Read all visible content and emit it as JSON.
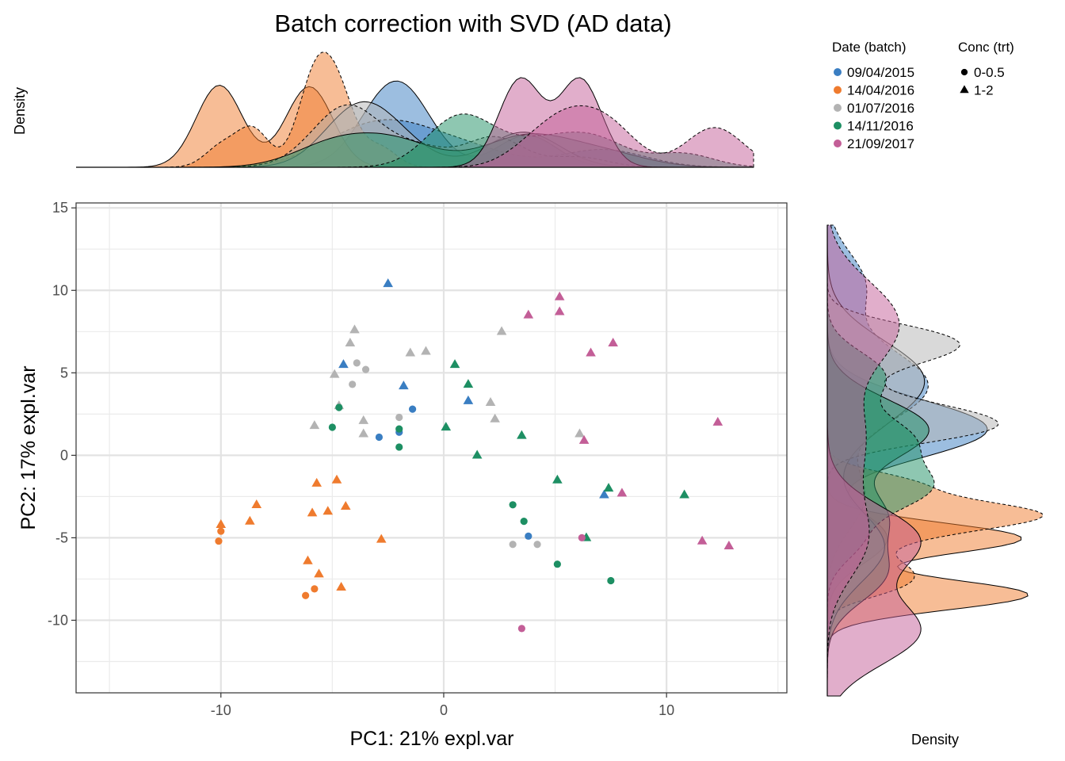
{
  "title": "Batch correction with SVD (AD data)",
  "colors": {
    "09/04/2015": "#3a7ec2",
    "14/04/2016": "#ef7b2e",
    "01/07/2016": "#b3b3b3",
    "14/11/2016": "#1d8f63",
    "21/09/2017": "#c35e97"
  },
  "legend": {
    "color_title": "Date (batch)",
    "shape_title": "Conc (trt)",
    "batches": [
      "09/04/2015",
      "14/04/2016",
      "01/07/2016",
      "14/11/2016",
      "21/09/2017"
    ],
    "shapes": [
      {
        "label": "0-0.5",
        "symbol": "circle"
      },
      {
        "label": "1-2",
        "symbol": "triangle"
      }
    ]
  },
  "top_density": {
    "ylabel": "Density"
  },
  "right_density": {
    "xlabel": "Density"
  },
  "chart_data": {
    "type": "scatter",
    "title": "Batch correction with SVD (AD data)",
    "xlabel": "PC1: 21% expl.var",
    "ylabel": "PC2: 17% expl.var",
    "xlim": [
      -16.5,
      15.4
    ],
    "ylim": [
      -14.4,
      15.3
    ],
    "xticks": [
      -10,
      0,
      10
    ],
    "yticks": [
      -10,
      -5,
      0,
      5,
      10,
      15
    ],
    "xtick_labels": [
      "-10",
      "0",
      "10"
    ],
    "ytick_labels": [
      "-10",
      "-5",
      "0",
      "5",
      "10",
      "15"
    ],
    "grid": true,
    "legend_position": "top-right",
    "series": [
      {
        "name": "09/04/2015",
        "points": [
          {
            "x": -2.5,
            "y": 10.4,
            "shape": "triangle"
          },
          {
            "x": -4.5,
            "y": 5.5,
            "shape": "triangle"
          },
          {
            "x": -1.8,
            "y": 4.2,
            "shape": "triangle"
          },
          {
            "x": 1.1,
            "y": 3.3,
            "shape": "triangle"
          },
          {
            "x": -1.4,
            "y": 2.8,
            "shape": "circle"
          },
          {
            "x": -2.0,
            "y": 1.4,
            "shape": "circle"
          },
          {
            "x": -2.9,
            "y": 1.1,
            "shape": "circle"
          },
          {
            "x": 3.8,
            "y": -4.9,
            "shape": "circle"
          },
          {
            "x": 7.2,
            "y": -2.4,
            "shape": "triangle"
          }
        ]
      },
      {
        "name": "14/04/2016",
        "points": [
          {
            "x": -10.0,
            "y": -4.2,
            "shape": "triangle"
          },
          {
            "x": -10.0,
            "y": -4.6,
            "shape": "circle"
          },
          {
            "x": -10.1,
            "y": -5.2,
            "shape": "circle"
          },
          {
            "x": -8.7,
            "y": -4.0,
            "shape": "triangle"
          },
          {
            "x": -8.4,
            "y": -3.0,
            "shape": "triangle"
          },
          {
            "x": -5.7,
            "y": -1.7,
            "shape": "triangle"
          },
          {
            "x": -4.8,
            "y": -1.5,
            "shape": "triangle"
          },
          {
            "x": -4.4,
            "y": -3.1,
            "shape": "triangle"
          },
          {
            "x": -5.2,
            "y": -3.4,
            "shape": "triangle"
          },
          {
            "x": -5.9,
            "y": -3.5,
            "shape": "triangle"
          },
          {
            "x": -2.8,
            "y": -5.1,
            "shape": "triangle"
          },
          {
            "x": -6.1,
            "y": -6.4,
            "shape": "triangle"
          },
          {
            "x": -5.6,
            "y": -7.2,
            "shape": "triangle"
          },
          {
            "x": -4.6,
            "y": -8.0,
            "shape": "triangle"
          },
          {
            "x": -5.8,
            "y": -8.1,
            "shape": "circle"
          },
          {
            "x": -6.2,
            "y": -8.5,
            "shape": "circle"
          }
        ]
      },
      {
        "name": "01/07/2016",
        "points": [
          {
            "x": -4.0,
            "y": 7.6,
            "shape": "triangle"
          },
          {
            "x": -4.2,
            "y": 6.8,
            "shape": "triangle"
          },
          {
            "x": -3.9,
            "y": 5.6,
            "shape": "circle"
          },
          {
            "x": -3.5,
            "y": 5.2,
            "shape": "circle"
          },
          {
            "x": -4.9,
            "y": 4.9,
            "shape": "triangle"
          },
          {
            "x": -4.1,
            "y": 4.3,
            "shape": "circle"
          },
          {
            "x": -4.7,
            "y": 3.0,
            "shape": "triangle"
          },
          {
            "x": -3.6,
            "y": 2.1,
            "shape": "triangle"
          },
          {
            "x": -5.8,
            "y": 1.8,
            "shape": "triangle"
          },
          {
            "x": -3.6,
            "y": 1.3,
            "shape": "triangle"
          },
          {
            "x": -2.0,
            "y": 2.3,
            "shape": "circle"
          },
          {
            "x": -1.5,
            "y": 6.2,
            "shape": "triangle"
          },
          {
            "x": -0.8,
            "y": 6.3,
            "shape": "triangle"
          },
          {
            "x": 2.6,
            "y": 7.5,
            "shape": "triangle"
          },
          {
            "x": 2.1,
            "y": 3.2,
            "shape": "triangle"
          },
          {
            "x": 2.3,
            "y": 2.2,
            "shape": "triangle"
          },
          {
            "x": 6.1,
            "y": 1.3,
            "shape": "triangle"
          },
          {
            "x": 3.1,
            "y": -5.4,
            "shape": "circle"
          },
          {
            "x": 4.2,
            "y": -5.4,
            "shape": "circle"
          }
        ]
      },
      {
        "name": "14/11/2016",
        "points": [
          {
            "x": 0.5,
            "y": 5.5,
            "shape": "triangle"
          },
          {
            "x": 1.1,
            "y": 4.3,
            "shape": "triangle"
          },
          {
            "x": -4.7,
            "y": 2.9,
            "shape": "circle"
          },
          {
            "x": -5.0,
            "y": 1.7,
            "shape": "circle"
          },
          {
            "x": -2.0,
            "y": 1.6,
            "shape": "circle"
          },
          {
            "x": -2.0,
            "y": 0.5,
            "shape": "circle"
          },
          {
            "x": 0.1,
            "y": 1.7,
            "shape": "triangle"
          },
          {
            "x": 3.5,
            "y": 1.2,
            "shape": "triangle"
          },
          {
            "x": 1.5,
            "y": 0.0,
            "shape": "triangle"
          },
          {
            "x": 5.1,
            "y": -1.5,
            "shape": "triangle"
          },
          {
            "x": 7.4,
            "y": -2.0,
            "shape": "triangle"
          },
          {
            "x": 10.8,
            "y": -2.4,
            "shape": "triangle"
          },
          {
            "x": 3.1,
            "y": -3.0,
            "shape": "circle"
          },
          {
            "x": 3.6,
            "y": -4.0,
            "shape": "circle"
          },
          {
            "x": 6.4,
            "y": -5.0,
            "shape": "triangle"
          },
          {
            "x": 5.1,
            "y": -6.6,
            "shape": "circle"
          },
          {
            "x": 7.5,
            "y": -7.6,
            "shape": "circle"
          }
        ]
      },
      {
        "name": "21/09/2017",
        "points": [
          {
            "x": 5.2,
            "y": 9.6,
            "shape": "triangle"
          },
          {
            "x": 3.8,
            "y": 8.5,
            "shape": "triangle"
          },
          {
            "x": 5.2,
            "y": 8.7,
            "shape": "triangle"
          },
          {
            "x": 7.6,
            "y": 6.8,
            "shape": "triangle"
          },
          {
            "x": 6.6,
            "y": 6.2,
            "shape": "triangle"
          },
          {
            "x": 12.3,
            "y": 2.0,
            "shape": "triangle"
          },
          {
            "x": 6.3,
            "y": 0.9,
            "shape": "triangle"
          },
          {
            "x": 8.0,
            "y": -2.3,
            "shape": "triangle"
          },
          {
            "x": 11.6,
            "y": -5.2,
            "shape": "triangle"
          },
          {
            "x": 12.8,
            "y": -5.5,
            "shape": "triangle"
          },
          {
            "x": 6.2,
            "y": -5.0,
            "shape": "circle"
          },
          {
            "x": 3.5,
            "y": -10.5,
            "shape": "circle"
          }
        ]
      }
    ]
  }
}
